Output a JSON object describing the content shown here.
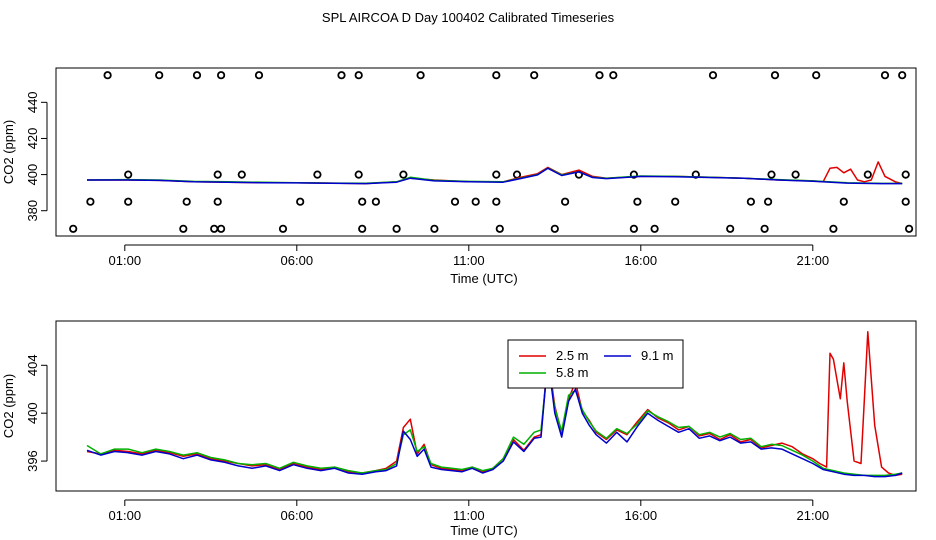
{
  "figure_title": "SPL AIRCOA D  Day 100402  Calibrated Timeseries",
  "colors": {
    "series_2_5": "#e00000",
    "series_5_8": "#00b000",
    "series_9_1": "#0000cc",
    "axes": "#000000"
  },
  "chart_data": [
    {
      "type": "line",
      "title": "",
      "xlabel": "Time (UTC)",
      "ylabel": "CO2 (ppm)",
      "x_unit": "hours UTC",
      "xlim": [
        -1.0,
        24.0
      ],
      "ylim": [
        366,
        459
      ],
      "xticks": [
        1,
        6,
        11,
        16,
        21
      ],
      "xtick_labels": [
        "01:00",
        "06:00",
        "11:00",
        "16:00",
        "21:00"
      ],
      "yticks": [
        380,
        400,
        420,
        440
      ],
      "ytick_labels": [
        "380",
        "400",
        "420",
        "440"
      ],
      "series": [
        {
          "name": "2.5 m",
          "x": [
            -0.1,
            1,
            2,
            3,
            4,
            5,
            6,
            7,
            8,
            8.9,
            9.3,
            10,
            11,
            12,
            12.5,
            13,
            13.3,
            13.7,
            14.2,
            14.6,
            15,
            16,
            17,
            18,
            19,
            20,
            21,
            21.3,
            21.5,
            21.7,
            21.9,
            22.1,
            22.3,
            22.5,
            22.7,
            22.9,
            23.1,
            23.4,
            23.6
          ],
          "values": [
            397,
            397,
            396.8,
            396,
            395.8,
            395.5,
            395.5,
            395.3,
            395,
            396,
            398,
            397,
            396,
            396,
            398.5,
            400.5,
            404,
            400,
            402.5,
            399,
            398,
            399,
            399,
            398.5,
            398,
            397,
            396.5,
            396,
            403.5,
            404,
            401,
            403,
            397,
            396,
            397,
            407,
            399,
            396,
            395
          ]
        },
        {
          "name": "5.8 m",
          "x": [
            -0.1,
            1,
            2,
            3,
            4,
            5,
            6,
            7,
            8,
            8.9,
            9.3,
            10,
            11,
            12,
            12.5,
            13,
            13.3,
            13.7,
            14.2,
            14.6,
            15,
            16,
            17,
            18,
            19,
            20,
            21,
            22,
            23,
            23.6
          ],
          "values": [
            397,
            397.2,
            397,
            396.2,
            396,
            395.7,
            395.5,
            395.3,
            395.2,
            396,
            398.5,
            396.8,
            396.2,
            396,
            398,
            400,
            403.6,
            399.8,
            401.5,
            398.5,
            398,
            399.2,
            399,
            398.5,
            398,
            397.2,
            396.5,
            395.5,
            395.1,
            395.1
          ]
        },
        {
          "name": "9.1 m",
          "x": [
            -0.1,
            1,
            2,
            3,
            4,
            5,
            6,
            7,
            8,
            8.9,
            9.3,
            10,
            11,
            12,
            12.5,
            13,
            13.3,
            13.7,
            14.2,
            14.6,
            15,
            16,
            17,
            18,
            19,
            20,
            21,
            22,
            23,
            23.6
          ],
          "values": [
            397,
            397,
            396.8,
            396,
            395.8,
            395.5,
            395.4,
            395.2,
            395,
            395.8,
            398,
            396.5,
            396,
            395.8,
            397.8,
            399.8,
            403.5,
            399.5,
            401.5,
            398.4,
            397.8,
            399,
            398.8,
            398.4,
            398,
            397,
            396.3,
            395.3,
            395,
            395
          ]
        }
      ],
      "valve_markers": {
        "type": "scatter",
        "marker": "open circle",
        "x": [
          -0.5,
          0,
          0.5,
          1.1,
          1.1,
          2,
          2.7,
          2.8,
          3.1,
          3.6,
          3.7,
          3.7,
          3.8,
          3.8,
          4.4,
          4.9,
          5.6,
          6.1,
          6.6,
          7.3,
          7.8,
          7.8,
          7.9,
          7.9,
          8.3,
          8.9,
          9.1,
          9.6,
          10,
          10.6,
          11.2,
          11.8,
          11.8,
          11.8,
          11.9,
          12.4,
          12.9,
          13.5,
          13.8,
          14.2,
          14.8,
          15.2,
          15.8,
          15.8,
          15.9,
          16.4,
          17,
          17.6,
          18.1,
          18.6,
          19.2,
          19.6,
          19.7,
          19.8,
          19.9,
          20.5,
          21.1,
          21.6,
          21.9,
          22.6,
          23.1,
          23.6,
          23.7,
          23.7,
          23.8
        ],
        "values": [
          370,
          385,
          455,
          400,
          385,
          455,
          370,
          385,
          455,
          370,
          400,
          385,
          370,
          455,
          400,
          455,
          370,
          385,
          400,
          455,
          455,
          400,
          385,
          370,
          385,
          370,
          400,
          455,
          370,
          385,
          385,
          400,
          385,
          455,
          370,
          400,
          455,
          370,
          385,
          400,
          455,
          455,
          400,
          370,
          385,
          370,
          385,
          400,
          455,
          370,
          385,
          370,
          385,
          400,
          455,
          400,
          455,
          370,
          385,
          400,
          455,
          455,
          400,
          385,
          370
        ]
      }
    },
    {
      "type": "line",
      "title": "",
      "xlabel": "Time (UTC)",
      "ylabel": "CO2 (ppm)",
      "x_unit": "hours UTC",
      "xlim": [
        -1.0,
        24.0
      ],
      "ylim": [
        393.5,
        407.7
      ],
      "xticks": [
        1,
        6,
        11,
        16,
        21
      ],
      "xtick_labels": [
        "01:00",
        "06:00",
        "11:00",
        "16:00",
        "21:00"
      ],
      "yticks": [
        396,
        400,
        404
      ],
      "ytick_labels": [
        "396",
        "400",
        "404"
      ],
      "legend": {
        "placement": "top-center",
        "entries": [
          "2.5 m",
          "5.8 m",
          "9.1 m"
        ]
      },
      "series": [
        {
          "name": "2.5 m",
          "x": [
            -0.1,
            0.3,
            0.7,
            1.1,
            1.5,
            1.9,
            2.3,
            2.7,
            3.1,
            3.5,
            3.9,
            4.3,
            4.7,
            5.1,
            5.5,
            5.9,
            6.3,
            6.7,
            7.1,
            7.5,
            7.9,
            8.3,
            8.6,
            8.9,
            9.1,
            9.3,
            9.5,
            9.7,
            9.9,
            10.2,
            10.5,
            10.8,
            11.1,
            11.4,
            11.7,
            12,
            12.3,
            12.6,
            12.9,
            13.1,
            13.3,
            13.5,
            13.7,
            13.9,
            14.1,
            14.3,
            14.5,
            14.7,
            15,
            15.3,
            15.6,
            15.9,
            16.2,
            16.5,
            16.8,
            17.1,
            17.4,
            17.7,
            18,
            18.3,
            18.6,
            18.9,
            19.2,
            19.5,
            19.8,
            20.1,
            20.4,
            20.7,
            21,
            21.2,
            21.4,
            21.5,
            21.6,
            21.8,
            21.9,
            22,
            22.2,
            22.4,
            22.5,
            22.6,
            22.8,
            23,
            23.2,
            23.4,
            23.6
          ],
          "values": [
            396.8,
            396.6,
            396.9,
            396.8,
            396.6,
            396.9,
            396.7,
            396.4,
            396.6,
            396.2,
            396,
            395.8,
            395.6,
            395.7,
            395.3,
            395.8,
            395.5,
            395.3,
            395.5,
            395.1,
            395,
            395.2,
            395.4,
            396,
            398.8,
            399.5,
            396.6,
            397.4,
            395.7,
            395.4,
            395.3,
            395.2,
            395.5,
            395.1,
            395.4,
            396.2,
            397.8,
            396.9,
            398,
            398.2,
            404.8,
            400.6,
            398.3,
            401.2,
            402.6,
            400.2,
            399.4,
            398.4,
            397.8,
            398.6,
            398.2,
            399.3,
            400.3,
            399.6,
            399.2,
            398.6,
            398.9,
            398.1,
            398.3,
            397.8,
            398.2,
            397.6,
            397.8,
            397.1,
            397.3,
            397.5,
            397.2,
            396.6,
            396.2,
            395.8,
            395.5,
            405,
            404.5,
            401.2,
            404.2,
            401,
            396,
            395.8,
            401.2,
            406.8,
            399,
            395.5,
            395,
            394.8,
            394.9
          ]
        },
        {
          "name": "5.8 m",
          "x": [
            -0.1,
            0.3,
            0.7,
            1.1,
            1.5,
            1.9,
            2.3,
            2.7,
            3.1,
            3.5,
            3.9,
            4.3,
            4.7,
            5.1,
            5.5,
            5.9,
            6.3,
            6.7,
            7.1,
            7.5,
            7.9,
            8.3,
            8.6,
            8.9,
            9.1,
            9.3,
            9.5,
            9.7,
            9.9,
            10.2,
            10.5,
            10.8,
            11.1,
            11.4,
            11.7,
            12,
            12.3,
            12.6,
            12.9,
            13.1,
            13.3,
            13.5,
            13.7,
            13.9,
            14.1,
            14.3,
            14.5,
            14.7,
            15,
            15.3,
            15.6,
            15.9,
            16.2,
            16.5,
            16.8,
            17.1,
            17.4,
            17.7,
            18,
            18.3,
            18.6,
            18.9,
            19.2,
            19.5,
            19.8,
            20.1,
            20.4,
            20.7,
            21,
            21.3,
            21.6,
            21.9,
            22.2,
            22.5,
            22.8,
            23.1,
            23.4,
            23.6
          ],
          "values": [
            397.3,
            396.6,
            397,
            397,
            396.7,
            397,
            396.8,
            396.5,
            396.7,
            396.3,
            396.1,
            395.8,
            395.7,
            395.8,
            395.4,
            395.9,
            395.6,
            395.4,
            395.5,
            395.2,
            395,
            395.2,
            395.3,
            395.8,
            398.2,
            398.6,
            396.8,
            397.2,
            395.8,
            395.5,
            395.4,
            395.3,
            395.5,
            395.2,
            395.4,
            396.2,
            398,
            397.4,
            398.4,
            398.6,
            404.2,
            400.4,
            398.5,
            401.5,
            401.9,
            400.3,
            399.3,
            398.5,
            397.9,
            398.7,
            398.3,
            399.1,
            400.2,
            399.7,
            399.3,
            398.8,
            398.9,
            398.2,
            398.4,
            398,
            398.3,
            397.8,
            397.9,
            397.2,
            397.4,
            397.3,
            396.9,
            396.5,
            396,
            395.4,
            395.2,
            395,
            394.9,
            394.8,
            394.8,
            394.8,
            394.9,
            395
          ]
        },
        {
          "name": "9.1 m",
          "x": [
            -0.1,
            0.3,
            0.7,
            1.1,
            1.5,
            1.9,
            2.3,
            2.7,
            3.1,
            3.5,
            3.9,
            4.3,
            4.7,
            5.1,
            5.5,
            5.9,
            6.3,
            6.7,
            7.1,
            7.5,
            7.9,
            8.3,
            8.6,
            8.9,
            9.1,
            9.3,
            9.5,
            9.7,
            9.9,
            10.2,
            10.5,
            10.8,
            11.1,
            11.4,
            11.7,
            12,
            12.3,
            12.6,
            12.9,
            13.1,
            13.3,
            13.5,
            13.7,
            13.9,
            14.1,
            14.3,
            14.5,
            14.7,
            15,
            15.3,
            15.6,
            15.9,
            16.2,
            16.5,
            16.8,
            17.1,
            17.4,
            17.7,
            18,
            18.3,
            18.6,
            18.9,
            19.2,
            19.5,
            19.8,
            20.1,
            20.4,
            20.7,
            21,
            21.3,
            21.6,
            21.9,
            22.2,
            22.5,
            22.8,
            23.1,
            23.4,
            23.6
          ],
          "values": [
            396.9,
            396.5,
            396.8,
            396.7,
            396.5,
            396.8,
            396.6,
            396.2,
            396.5,
            396.1,
            395.9,
            395.6,
            395.4,
            395.6,
            395.2,
            395.7,
            395.4,
            395.2,
            395.4,
            395,
            394.9,
            395.1,
            395.2,
            395.6,
            398.5,
            397.8,
            396.4,
            397,
            395.5,
            395.3,
            395.2,
            395.1,
            395.4,
            395,
            395.3,
            396,
            397.6,
            396.8,
            397.9,
            398,
            404.6,
            400,
            398,
            401,
            402,
            400,
            399,
            398.2,
            397.5,
            398.4,
            397.6,
            398.9,
            400,
            399.4,
            398.9,
            398.4,
            398.7,
            397.9,
            398.1,
            397.7,
            398,
            397.5,
            397.6,
            397,
            397.1,
            397,
            396.6,
            396.2,
            395.8,
            395.3,
            395.1,
            394.9,
            394.8,
            394.8,
            394.7,
            394.7,
            394.8,
            395
          ]
        }
      ]
    }
  ]
}
